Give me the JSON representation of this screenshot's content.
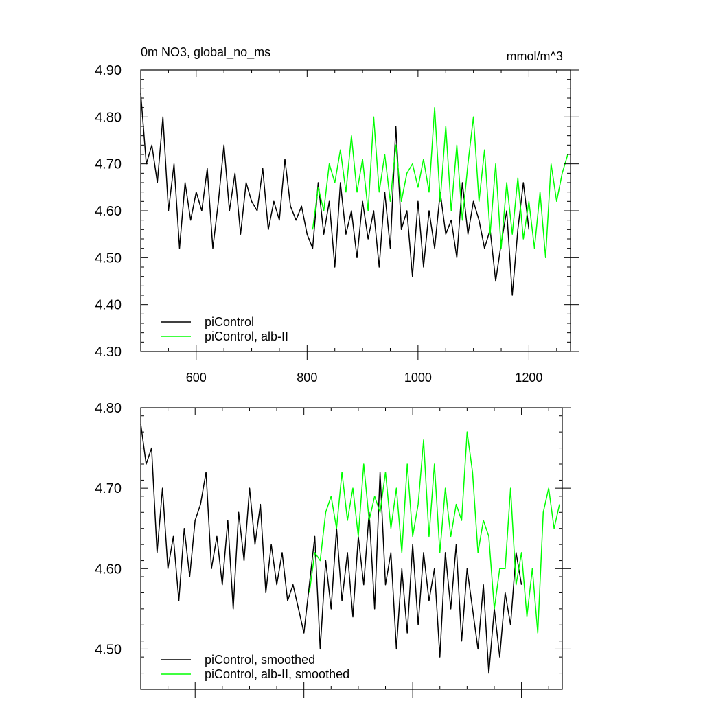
{
  "figure": {
    "title_left": "0m NO3, global_no_ms",
    "title_right": "mmol/m^3"
  },
  "chart_data": [
    {
      "type": "line",
      "title": "0m NO3, global_no_ms",
      "units": "mmol/m^3",
      "xlim": [
        500,
        1275
      ],
      "ylim": [
        4.3,
        4.9
      ],
      "x_ticks": [
        600,
        800,
        1000,
        1200
      ],
      "x_tick_labels": [
        "600",
        "800",
        "1000",
        "1200"
      ],
      "y_ticks": [
        4.3,
        4.4,
        4.5,
        4.6,
        4.7,
        4.8,
        4.9
      ],
      "y_tick_labels": [
        "4.30",
        "4.40",
        "4.50",
        "4.60",
        "4.70",
        "4.80",
        "4.90"
      ],
      "legend_position": "bottom-left",
      "series": [
        {
          "name": "piControl",
          "color": "#000000",
          "x": [
            500,
            510,
            520,
            530,
            540,
            550,
            560,
            570,
            580,
            590,
            600,
            610,
            620,
            630,
            640,
            650,
            660,
            670,
            680,
            690,
            700,
            710,
            720,
            730,
            740,
            750,
            760,
            770,
            780,
            790,
            800,
            810,
            820,
            830,
            840,
            850,
            860,
            870,
            880,
            890,
            900,
            910,
            920,
            930,
            940,
            950,
            960,
            970,
            980,
            990,
            1000,
            1010,
            1020,
            1030,
            1040,
            1050,
            1060,
            1070,
            1080,
            1090,
            1100,
            1110,
            1120,
            1130,
            1140,
            1150,
            1160,
            1170,
            1180,
            1190,
            1200
          ],
          "y": [
            4.85,
            4.7,
            4.74,
            4.66,
            4.8,
            4.6,
            4.7,
            4.52,
            4.66,
            4.58,
            4.64,
            4.6,
            4.69,
            4.52,
            4.62,
            4.74,
            4.6,
            4.68,
            4.55,
            4.66,
            4.62,
            4.6,
            4.69,
            4.56,
            4.62,
            4.58,
            4.71,
            4.61,
            4.58,
            4.61,
            4.55,
            4.52,
            4.66,
            4.55,
            4.62,
            4.48,
            4.66,
            4.55,
            4.6,
            4.5,
            4.62,
            4.54,
            4.6,
            4.48,
            4.64,
            4.52,
            4.78,
            4.56,
            4.6,
            4.46,
            4.62,
            4.48,
            4.6,
            4.52,
            4.64,
            4.55,
            4.58,
            4.5,
            4.66,
            4.55,
            4.62,
            4.58,
            4.52,
            4.56,
            4.45,
            4.53,
            4.6,
            4.42,
            4.56,
            4.66,
            4.56
          ]
        },
        {
          "name": "piControl, alb-II",
          "color": "#00ff00",
          "x": [
            810,
            820,
            830,
            840,
            850,
            860,
            870,
            880,
            890,
            900,
            910,
            920,
            930,
            940,
            950,
            960,
            970,
            980,
            990,
            1000,
            1010,
            1020,
            1030,
            1040,
            1050,
            1060,
            1070,
            1080,
            1090,
            1100,
            1110,
            1120,
            1130,
            1140,
            1150,
            1160,
            1170,
            1180,
            1190,
            1200,
            1210,
            1220,
            1230,
            1240,
            1250,
            1260,
            1270
          ],
          "y": [
            4.56,
            4.65,
            4.6,
            4.7,
            4.66,
            4.73,
            4.64,
            4.76,
            4.64,
            4.71,
            4.6,
            4.8,
            4.64,
            4.72,
            4.62,
            4.74,
            4.62,
            4.68,
            4.7,
            4.65,
            4.71,
            4.64,
            4.82,
            4.62,
            4.78,
            4.6,
            4.74,
            4.58,
            4.7,
            4.8,
            4.62,
            4.73,
            4.55,
            4.7,
            4.52,
            4.66,
            4.55,
            4.67,
            4.54,
            4.62,
            4.52,
            4.64,
            4.5,
            4.7,
            4.62,
            4.68,
            4.72
          ]
        }
      ]
    },
    {
      "type": "line",
      "xlim": [
        500,
        1275
      ],
      "ylim": [
        4.45,
        4.8
      ],
      "x_ticks": [
        600,
        800,
        1000,
        1200
      ],
      "y_ticks": [
        4.5,
        4.6,
        4.7,
        4.8
      ],
      "y_tick_labels": [
        "4.50",
        "4.60",
        "4.70",
        "4.80"
      ],
      "legend_position": "bottom-left",
      "series": [
        {
          "name": "piControl, smoothed",
          "color": "#000000",
          "x": [
            500,
            510,
            520,
            530,
            540,
            550,
            560,
            570,
            580,
            590,
            600,
            610,
            620,
            630,
            640,
            650,
            660,
            670,
            680,
            690,
            700,
            710,
            720,
            730,
            740,
            750,
            760,
            770,
            780,
            790,
            800,
            810,
            820,
            830,
            840,
            850,
            860,
            870,
            880,
            890,
            900,
            910,
            920,
            930,
            940,
            950,
            960,
            970,
            980,
            990,
            1000,
            1010,
            1020,
            1030,
            1040,
            1050,
            1060,
            1070,
            1080,
            1090,
            1100,
            1110,
            1120,
            1130,
            1140,
            1150,
            1160,
            1170,
            1180,
            1190,
            1200
          ],
          "y": [
            4.78,
            4.73,
            4.75,
            4.62,
            4.7,
            4.6,
            4.64,
            4.56,
            4.65,
            4.59,
            4.66,
            4.68,
            4.72,
            4.6,
            4.64,
            4.58,
            4.66,
            4.55,
            4.67,
            4.61,
            4.7,
            4.63,
            4.68,
            4.57,
            4.63,
            4.58,
            4.62,
            4.56,
            4.58,
            4.55,
            4.52,
            4.58,
            4.64,
            4.5,
            4.61,
            4.55,
            4.65,
            4.56,
            4.62,
            4.54,
            4.64,
            4.58,
            4.67,
            4.55,
            4.72,
            4.58,
            4.62,
            4.5,
            4.6,
            4.52,
            4.63,
            4.53,
            4.62,
            4.56,
            4.6,
            4.49,
            4.62,
            4.55,
            4.63,
            4.51,
            4.6,
            4.55,
            4.5,
            4.58,
            4.47,
            4.55,
            4.49,
            4.57,
            4.53,
            4.62,
            4.58
          ]
        },
        {
          "name": "piControl, alb-II, smoothed",
          "color": "#00ff00",
          "x": [
            810,
            820,
            830,
            840,
            850,
            860,
            870,
            880,
            890,
            900,
            910,
            920,
            930,
            940,
            950,
            960,
            970,
            980,
            990,
            1000,
            1010,
            1020,
            1030,
            1040,
            1050,
            1060,
            1070,
            1080,
            1090,
            1100,
            1110,
            1120,
            1130,
            1140,
            1150,
            1160,
            1170,
            1180,
            1190,
            1200,
            1210,
            1220,
            1230,
            1240,
            1250,
            1260,
            1270
          ],
          "y": [
            4.57,
            4.62,
            4.61,
            4.67,
            4.69,
            4.65,
            4.72,
            4.66,
            4.7,
            4.64,
            4.73,
            4.66,
            4.69,
            4.67,
            4.72,
            4.65,
            4.7,
            4.62,
            4.73,
            4.64,
            4.68,
            4.76,
            4.64,
            4.73,
            4.62,
            4.7,
            4.64,
            4.68,
            4.66,
            4.77,
            4.72,
            4.62,
            4.66,
            4.64,
            4.55,
            4.6,
            4.6,
            4.7,
            4.58,
            4.62,
            4.54,
            4.6,
            4.52,
            4.67,
            4.7,
            4.65,
            4.68
          ]
        }
      ]
    }
  ]
}
